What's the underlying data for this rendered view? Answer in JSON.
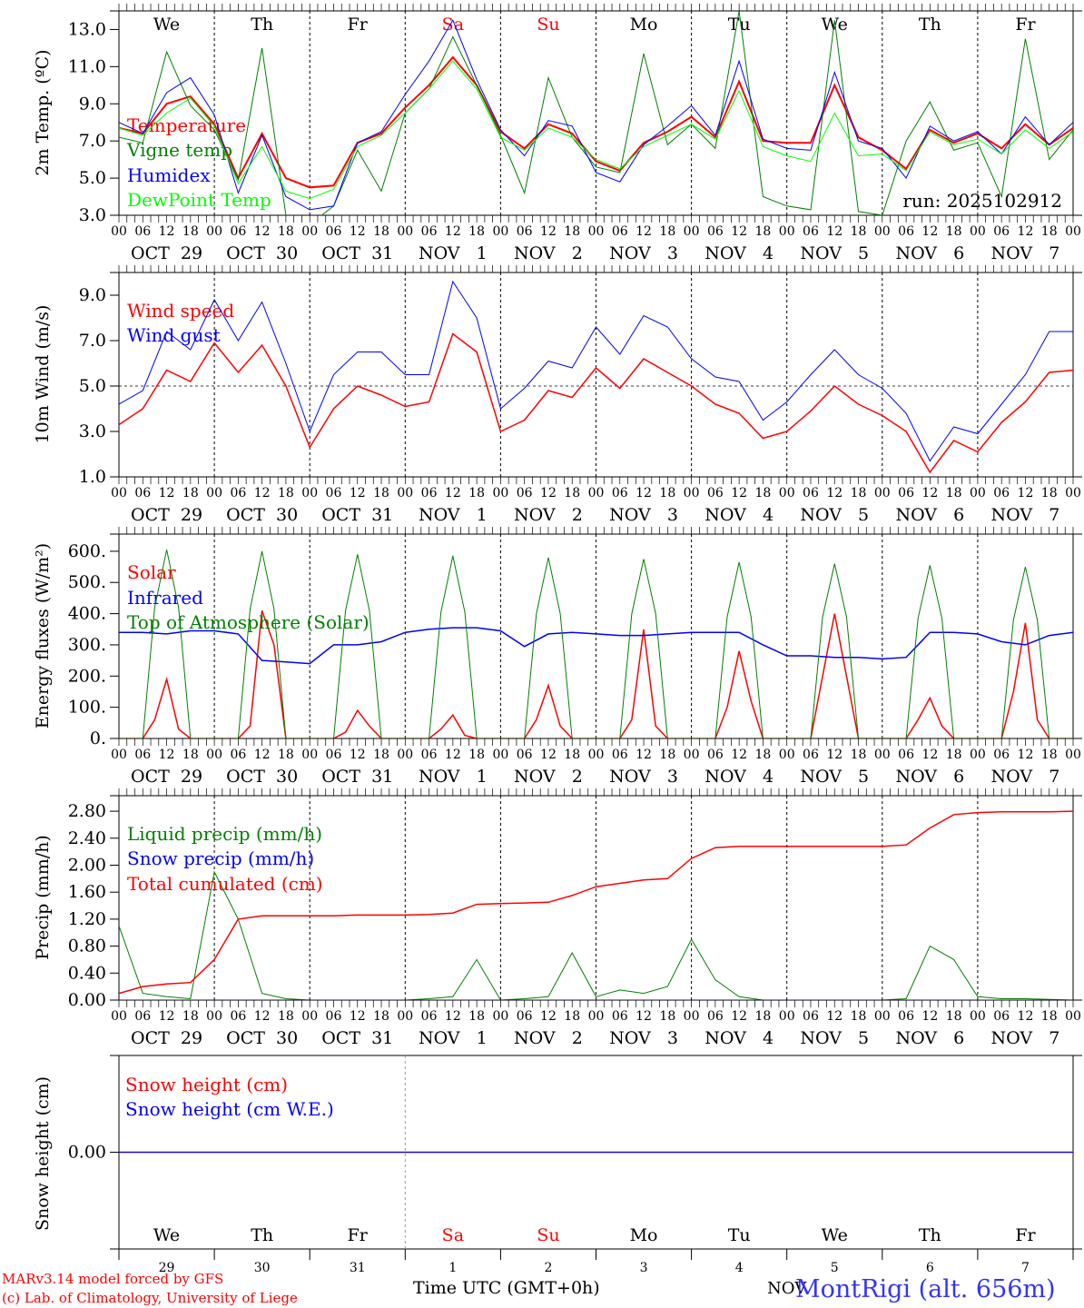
{
  "chart_data": {
    "type": "line",
    "time_start": "2025-10-29 00 UTC",
    "step_hours_6h": 6,
    "step_hours_3h": 3,
    "weekdays": [
      {
        "label": "We",
        "color": "#000000"
      },
      {
        "label": "Th",
        "color": "#000000"
      },
      {
        "label": "Fr",
        "color": "#000000"
      },
      {
        "label": "Sa",
        "color": "#ff0000"
      },
      {
        "label": "Su",
        "color": "#ff0000"
      },
      {
        "label": "Mo",
        "color": "#000000"
      },
      {
        "label": "Tu",
        "color": "#000000"
      },
      {
        "label": "We",
        "color": "#000000"
      },
      {
        "label": "Th",
        "color": "#000000"
      },
      {
        "label": "Fr",
        "color": "#000000"
      }
    ],
    "hour_ticks": [
      "00",
      "06",
      "12",
      "18"
    ],
    "end_tick": "00",
    "date_labels": [
      "OCT  29",
      "OCT  30",
      "OCT  31",
      "NOV   1",
      "NOV   2",
      "NOV   3",
      "NOV   4",
      "NOV   5",
      "NOV   6",
      "NOV   7"
    ],
    "day_numbers": [
      "29",
      "30",
      "31",
      "1",
      "2",
      "3",
      "4",
      "5",
      "6",
      "7"
    ],
    "xlabel": "Time UTC (GMT+0h)",
    "panels": [
      {
        "id": "temp",
        "ylabel": "2m Temp. (ºC)",
        "ylim": [
          3,
          14
        ],
        "yticks": [
          "3.0",
          "5.0",
          "7.0",
          "9.0",
          "11.0",
          "13.0"
        ],
        "annotation": "run: 2025102912",
        "series": [
          {
            "name": "Temperature",
            "color": "#ff0000",
            "width": 2,
            "step": 6,
            "values": [
              7.7,
              7.4,
              9.0,
              9.4,
              7.9,
              5.0,
              7.4,
              5.0,
              4.5,
              4.6,
              6.9,
              7.4,
              8.8,
              10.0,
              11.5,
              10.0,
              7.5,
              6.6,
              7.9,
              7.4,
              5.9,
              5.4,
              6.9,
              7.5,
              8.3,
              7.2,
              10.2,
              7.0,
              6.9,
              6.9,
              10.0,
              7.2,
              6.5,
              5.5,
              7.6,
              6.9,
              7.4,
              6.6,
              7.9,
              6.8,
              7.7
            ]
          },
          {
            "name": "Vigne temp",
            "color": "#008000",
            "width": 1,
            "step": 6,
            "values": [
              7.2,
              6.9,
              11.8,
              8.9,
              7.6,
              4.9,
              12.0,
              3.0,
              2.5,
              3.5,
              6.5,
              4.3,
              8.5,
              9.8,
              12.6,
              10.0,
              7.3,
              4.2,
              10.4,
              7.2,
              5.6,
              5.3,
              11.7,
              6.8,
              7.9,
              6.6,
              14.0,
              4.0,
              3.5,
              3.3,
              13.5,
              3.2,
              3.0,
              7.0,
              9.1,
              6.5,
              6.9,
              4.0,
              12.5,
              6.0,
              7.6
            ]
          },
          {
            "name": "Humidex",
            "color": "#0000ff",
            "width": 1,
            "step": 6,
            "values": [
              8.0,
              7.4,
              9.6,
              10.4,
              8.4,
              4.2,
              7.3,
              4.0,
              3.3,
              3.5,
              6.9,
              7.5,
              9.5,
              11.3,
              13.5,
              10.3,
              7.6,
              6.2,
              8.1,
              7.8,
              5.3,
              4.8,
              6.8,
              7.8,
              8.9,
              7.3,
              11.3,
              7.1,
              6.6,
              6.5,
              10.7,
              7.0,
              6.6,
              5.0,
              7.8,
              7.0,
              7.5,
              6.3,
              8.3,
              6.8,
              8.0
            ]
          },
          {
            "name": "DewPoint Temp",
            "color": "#00ff00",
            "width": 1,
            "step": 6,
            "values": [
              7.7,
              7.3,
              8.5,
              9.3,
              7.8,
              4.7,
              6.7,
              4.3,
              3.9,
              4.4,
              6.7,
              7.3,
              8.5,
              9.8,
              11.3,
              9.8,
              7.2,
              6.5,
              7.7,
              7.2,
              6.0,
              5.5,
              6.7,
              7.3,
              7.9,
              7.1,
              9.7,
              6.7,
              6.2,
              5.9,
              8.5,
              6.2,
              6.3,
              5.4,
              7.5,
              6.8,
              7.1,
              6.3,
              7.6,
              6.6,
              7.5
            ]
          }
        ]
      },
      {
        "id": "wind",
        "ylabel": "10m Wind (m/s)",
        "ylim": [
          1,
          10
        ],
        "yticks": [
          "1.0",
          "3.0",
          "5.0",
          "7.0",
          "9.0"
        ],
        "ref_line": 5.0,
        "series": [
          {
            "name": "Wind speed",
            "color": "#ff0000",
            "width": 1.5,
            "step": 6,
            "values": [
              3.3,
              4.0,
              5.7,
              5.2,
              6.9,
              5.6,
              6.8,
              5.0,
              2.3,
              4.0,
              5.0,
              4.6,
              4.1,
              4.3,
              7.3,
              6.5,
              3.0,
              3.5,
              4.8,
              4.5,
              5.8,
              4.9,
              6.2,
              5.6,
              5.0,
              4.2,
              3.8,
              2.7,
              3.0,
              3.9,
              5.0,
              4.2,
              3.7,
              3.0,
              1.2,
              2.6,
              2.1,
              3.4,
              4.3,
              5.6,
              5.7
            ]
          },
          {
            "name": "Wind gust",
            "color": "#0000ff",
            "width": 1,
            "step": 6,
            "values": [
              4.2,
              4.8,
              7.4,
              6.6,
              8.8,
              7.0,
              8.7,
              6.0,
              3.0,
              5.5,
              6.5,
              6.5,
              5.5,
              5.5,
              9.6,
              8.0,
              4.0,
              4.9,
              6.1,
              5.8,
              7.6,
              6.4,
              8.1,
              7.6,
              6.2,
              5.4,
              5.2,
              3.5,
              4.3,
              5.5,
              6.6,
              5.5,
              4.9,
              3.8,
              1.7,
              3.2,
              2.9,
              4.2,
              5.5,
              7.4,
              7.4
            ]
          }
        ]
      },
      {
        "id": "energy",
        "ylabel": "Energy fluxes (W/m²)",
        "ylim": [
          0,
          655
        ],
        "yticks": [
          "0.",
          "100.",
          "200.",
          "300.",
          "400.",
          "500.",
          "600."
        ],
        "series": [
          {
            "name": "Solar",
            "color": "#ff0000",
            "width": 1.5,
            "step": 3,
            "values": [
              0,
              0,
              0,
              60,
              190,
              30,
              0,
              0,
              0,
              0,
              0,
              40,
              410,
              300,
              0,
              0,
              0,
              0,
              0,
              20,
              90,
              40,
              0,
              0,
              0,
              0,
              0,
              30,
              75,
              10,
              0,
              0,
              0,
              0,
              0,
              60,
              170,
              40,
              0,
              0,
              0,
              0,
              0,
              60,
              350,
              40,
              0,
              0,
              0,
              0,
              0,
              100,
              280,
              120,
              0,
              0,
              0,
              0,
              0,
              200,
              400,
              200,
              0,
              0,
              0,
              0,
              0,
              60,
              130,
              40,
              0,
              0,
              0,
              0,
              0,
              150,
              370,
              60,
              0,
              0,
              0
            ]
          },
          {
            "name": "Infrared",
            "color": "#0000ff",
            "width": 1.5,
            "step": 6,
            "values": [
              340,
              340,
              335,
              345,
              345,
              335,
              250,
              245,
              240,
              300,
              300,
              310,
              340,
              350,
              355,
              355,
              345,
              295,
              335,
              340,
              335,
              330,
              330,
              335,
              340,
              340,
              340,
              300,
              265,
              265,
              260,
              260,
              255,
              260,
              340,
              340,
              335,
              310,
              300,
              330,
              340
            ]
          },
          {
            "name": "Top of Atmosphere (Solar)",
            "color": "#008000",
            "width": 1,
            "step": 3,
            "values": [
              0,
              0,
              0,
              420,
              605,
              420,
              0,
              0,
              0,
              0,
              0,
              415,
              600,
              415,
              0,
              0,
              0,
              0,
              0,
              410,
              590,
              410,
              0,
              0,
              0,
              0,
              0,
              405,
              585,
              405,
              0,
              0,
              0,
              0,
              0,
              400,
              580,
              400,
              0,
              0,
              0,
              0,
              0,
              400,
              575,
              400,
              0,
              0,
              0,
              0,
              0,
              390,
              565,
              390,
              0,
              0,
              0,
              0,
              0,
              390,
              560,
              390,
              0,
              0,
              0,
              0,
              0,
              385,
              555,
              385,
              0,
              0,
              0,
              0,
              0,
              380,
              550,
              380,
              0,
              0,
              0
            ]
          }
        ]
      },
      {
        "id": "precip",
        "ylabel": "Precip (mm/h)",
        "ylim": [
          0,
          3.03
        ],
        "yticks": [
          "0.00",
          "0.40",
          "0.80",
          "1.20",
          "1.60",
          "2.00",
          "2.40",
          "2.80"
        ],
        "series": [
          {
            "name": "Liquid precip (mm/h)",
            "color": "#008000",
            "width": 1,
            "step": 6,
            "values": [
              1.1,
              0.1,
              0.05,
              0.02,
              1.9,
              1.2,
              0.1,
              0.02,
              0,
              0,
              0,
              0,
              0,
              0.02,
              0.05,
              0.6,
              0,
              0.02,
              0.05,
              0.7,
              0.05,
              0.15,
              0.1,
              0.2,
              0.9,
              0.3,
              0.05,
              0,
              0,
              0,
              0,
              0,
              0,
              0.02,
              0.8,
              0.6,
              0.05,
              0.02,
              0.02,
              0.01,
              0
            ]
          },
          {
            "name": "Snow precip (mm/h)",
            "color": "#0000ff",
            "width": 1,
            "step": 6,
            "values": [
              0,
              0,
              0,
              0,
              0,
              0,
              0,
              0,
              0,
              0,
              0,
              0,
              0,
              0,
              0,
              0,
              0,
              0,
              0,
              0,
              0,
              0,
              0,
              0,
              0,
              0,
              0,
              0,
              0,
              0,
              0,
              0,
              0,
              0,
              0,
              0,
              0,
              0,
              0,
              0,
              0
            ]
          },
          {
            "name": "Total cumulated (cm)",
            "color": "#ff0000",
            "width": 1.5,
            "step": 6,
            "values": [
              0.1,
              0.2,
              0.24,
              0.26,
              0.6,
              1.2,
              1.25,
              1.25,
              1.25,
              1.25,
              1.26,
              1.26,
              1.26,
              1.27,
              1.29,
              1.42,
              1.43,
              1.44,
              1.45,
              1.55,
              1.68,
              1.73,
              1.78,
              1.8,
              2.1,
              2.26,
              2.28,
              2.28,
              2.28,
              2.28,
              2.28,
              2.28,
              2.28,
              2.3,
              2.55,
              2.75,
              2.78,
              2.79,
              2.79,
              2.79,
              2.8
            ]
          }
        ]
      },
      {
        "id": "snow",
        "ylabel": "Snow height (cm)",
        "ylim": [
          -1,
          1
        ],
        "yticks": [
          "0.00"
        ],
        "series": [
          {
            "name": "Snow height (cm)",
            "color": "#ff0000",
            "width": 1.5,
            "step": 240,
            "values": [
              0,
              0
            ]
          },
          {
            "name": "Snow height (cm W.E.)",
            "color": "#0000ff",
            "width": 1,
            "step": 240,
            "values": [
              0,
              0
            ]
          }
        ]
      }
    ]
  },
  "footer": {
    "model": "MARv3.14 model forced by GFS",
    "copyright": "(c) Lab. of Climatology, University of Liege",
    "month": "NOV",
    "station": "MontRigi (alt. 656m)"
  }
}
